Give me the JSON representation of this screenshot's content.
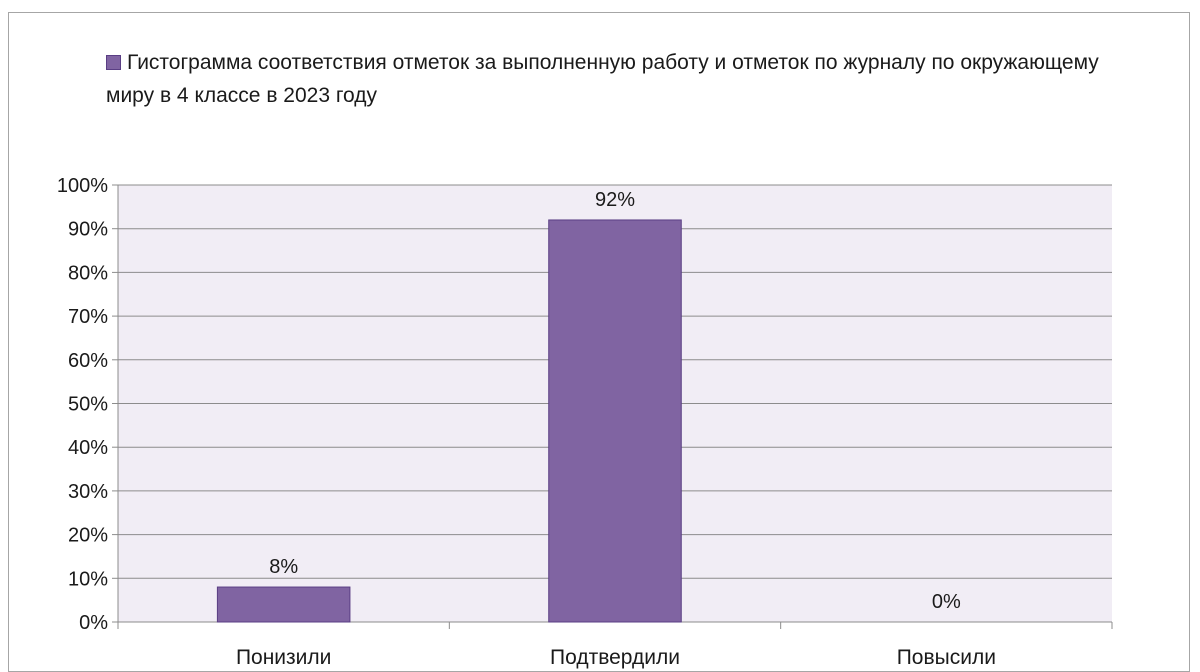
{
  "chart_data": {
    "type": "bar",
    "title": "",
    "xlabel": "",
    "ylabel": "",
    "categories": [
      "Понизили",
      "Подтвердили",
      "Повысили"
    ],
    "series": [
      {
        "name": "Гистограмма соответствия отметок за выполненную работу и отметок по журналу по окружающему миру в 4 классе в 2023 году",
        "values": [
          8,
          92,
          0
        ],
        "data_labels": [
          "8%",
          "92%",
          "0%"
        ],
        "color": "#8064a2"
      }
    ],
    "ylim": [
      0,
      100
    ],
    "y_ticks": [
      0,
      10,
      20,
      30,
      40,
      50,
      60,
      70,
      80,
      90,
      100
    ],
    "y_tick_labels": [
      "0%",
      "10%",
      "20%",
      "30%",
      "40%",
      "50%",
      "60%",
      "70%",
      "80%",
      "90%",
      "100%"
    ],
    "grid": true,
    "legend_position": "top",
    "plot_background": "#f1edf5"
  }
}
